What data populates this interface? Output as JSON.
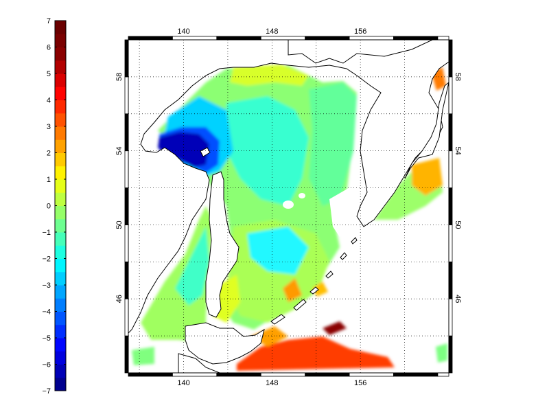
{
  "colorbar": {
    "min": -7,
    "max": 7,
    "step": 0.5,
    "tick_labels": [
      "7",
      "6",
      "5",
      "4",
      "3",
      "2",
      "1",
      "0",
      "−1",
      "−2",
      "−3",
      "−4",
      "−5",
      "−6",
      "−7"
    ],
    "colors": [
      "#00008f",
      "#0000b6",
      "#0000de",
      "#0006ff",
      "#002eff",
      "#0056ff",
      "#007eff",
      "#00a6ff",
      "#00ceff",
      "#00f6ff",
      "#1effe1",
      "#46ffb9",
      "#6eff91",
      "#96ff69",
      "#beff41",
      "#e6ff19",
      "#fff200",
      "#ffca00",
      "#ffa200",
      "#ff7a00",
      "#ff5200",
      "#ff2a00",
      "#ff0200",
      "#da0000",
      "#b20000",
      "#8a0000",
      "#7a0000",
      "#6a0000"
    ]
  },
  "map": {
    "lon_range": [
      135,
      164
    ],
    "lat_range": [
      42,
      60
    ],
    "lon_ticks": [
      140,
      148,
      156
    ],
    "lat_ticks": [
      46,
      50,
      54,
      58
    ],
    "top_lon_labels": [
      "140",
      "148",
      "156"
    ],
    "bottom_lon_labels": [
      "140",
      "148",
      "156"
    ],
    "left_lat_labels": [
      "46",
      "50",
      "54",
      "58"
    ],
    "right_lat_labels": [
      "46",
      "50",
      "54",
      "58"
    ],
    "frame_colors": [
      "#000000",
      "#ffffff"
    ],
    "grid_style": "dotted",
    "coastline_color": "#000000",
    "land_color": "#ffffff",
    "missing_data_color": "#ffffff"
  }
}
